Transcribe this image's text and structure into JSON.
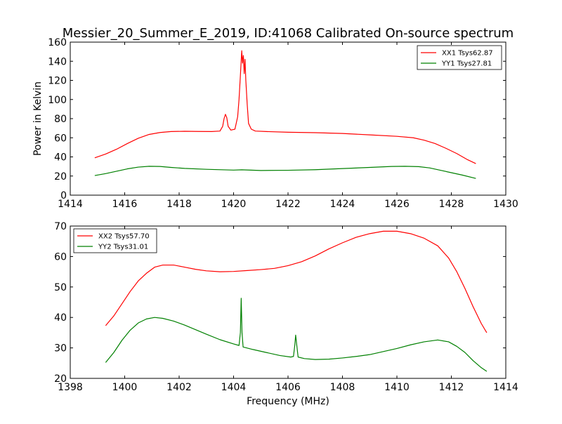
{
  "title": "Messier_20_Summer_E_2019, ID:41068 Calibrated On-source spectrum",
  "chart_data": [
    {
      "type": "line",
      "ylabel": "Power in Kelvin",
      "xlabel": "",
      "xlim": [
        1414,
        1430
      ],
      "ylim": [
        0,
        160
      ],
      "xticks": [
        1414,
        1416,
        1418,
        1420,
        1422,
        1424,
        1426,
        1428,
        1430
      ],
      "yticks": [
        0,
        20,
        40,
        60,
        80,
        100,
        120,
        140,
        160
      ],
      "legend_position": "top-right",
      "series": [
        {
          "name": "XX1 Tsys62.87",
          "color": "#ff0000",
          "points": [
            [
              1414.9,
              39
            ],
            [
              1415.3,
              43
            ],
            [
              1415.7,
              48
            ],
            [
              1416.1,
              54
            ],
            [
              1416.5,
              59.5
            ],
            [
              1416.9,
              63.5
            ],
            [
              1417.3,
              65.5
            ],
            [
              1417.7,
              66.5
            ],
            [
              1418.2,
              66.8
            ],
            [
              1418.7,
              66.6
            ],
            [
              1419.2,
              66.5
            ],
            [
              1419.5,
              67
            ],
            [
              1419.6,
              72
            ],
            [
              1419.65,
              80
            ],
            [
              1419.7,
              84.5
            ],
            [
              1419.75,
              81
            ],
            [
              1419.8,
              72
            ],
            [
              1419.9,
              68
            ],
            [
              1420.05,
              69
            ],
            [
              1420.15,
              82
            ],
            [
              1420.2,
              100
            ],
            [
              1420.25,
              125
            ],
            [
              1420.3,
              151
            ],
            [
              1420.33,
              138
            ],
            [
              1420.36,
              146
            ],
            [
              1420.39,
              127
            ],
            [
              1420.42,
              142
            ],
            [
              1420.45,
              120
            ],
            [
              1420.5,
              95
            ],
            [
              1420.55,
              75
            ],
            [
              1420.65,
              69
            ],
            [
              1420.8,
              67
            ],
            [
              1421.2,
              66.5
            ],
            [
              1422,
              65.8
            ],
            [
              1423,
              65.3
            ],
            [
              1424,
              64.5
            ],
            [
              1425,
              63
            ],
            [
              1426,
              61.5
            ],
            [
              1426.6,
              60
            ],
            [
              1427,
              57.5
            ],
            [
              1427.4,
              54
            ],
            [
              1427.8,
              49
            ],
            [
              1428.2,
              43.5
            ],
            [
              1428.6,
              37
            ],
            [
              1428.9,
              33
            ]
          ]
        },
        {
          "name": "YY1 Tsys27.81",
          "color": "#008000",
          "points": [
            [
              1414.9,
              20.5
            ],
            [
              1415.3,
              22.5
            ],
            [
              1415.7,
              25
            ],
            [
              1416.1,
              27.5
            ],
            [
              1416.5,
              29.3
            ],
            [
              1416.9,
              30.2
            ],
            [
              1417.3,
              30
            ],
            [
              1417.7,
              29
            ],
            [
              1418.2,
              28
            ],
            [
              1419,
              27
            ],
            [
              1420,
              26.2
            ],
            [
              1420.3,
              26.5
            ],
            [
              1421,
              25.8
            ],
            [
              1422,
              26
            ],
            [
              1423,
              26.6
            ],
            [
              1424,
              27.8
            ],
            [
              1425,
              29
            ],
            [
              1425.8,
              30
            ],
            [
              1426.3,
              30.2
            ],
            [
              1426.8,
              29.8
            ],
            [
              1427.2,
              28.5
            ],
            [
              1427.6,
              26
            ],
            [
              1428,
              23.5
            ],
            [
              1428.4,
              21
            ],
            [
              1428.9,
              17.5
            ]
          ]
        }
      ]
    },
    {
      "type": "line",
      "ylabel": "",
      "xlabel": "Frequency (MHz)",
      "xlim": [
        1398,
        1414
      ],
      "ylim": [
        20,
        70
      ],
      "xticks": [
        1398,
        1400,
        1402,
        1404,
        1406,
        1408,
        1410,
        1412,
        1414
      ],
      "yticks": [
        20,
        30,
        40,
        50,
        60,
        70
      ],
      "legend_position": "top-left",
      "series": [
        {
          "name": "XX2 Tsys57.70",
          "color": "#ff0000",
          "points": [
            [
              1399.3,
              37.3
            ],
            [
              1399.6,
              40.5
            ],
            [
              1399.9,
              44.5
            ],
            [
              1400.2,
              48.5
            ],
            [
              1400.5,
              52
            ],
            [
              1400.8,
              54.5
            ],
            [
              1401.1,
              56.5
            ],
            [
              1401.4,
              57.2
            ],
            [
              1401.8,
              57.2
            ],
            [
              1402.2,
              56.5
            ],
            [
              1402.6,
              55.8
            ],
            [
              1403,
              55.3
            ],
            [
              1403.5,
              55
            ],
            [
              1404,
              55.1
            ],
            [
              1404.5,
              55.4
            ],
            [
              1405,
              55.7
            ],
            [
              1405.5,
              56.1
            ],
            [
              1406,
              57
            ],
            [
              1406.5,
              58.3
            ],
            [
              1407,
              60.2
            ],
            [
              1407.5,
              62.5
            ],
            [
              1408,
              64.5
            ],
            [
              1408.5,
              66.3
            ],
            [
              1409,
              67.5
            ],
            [
              1409.5,
              68.3
            ],
            [
              1410,
              68.3
            ],
            [
              1410.5,
              67.5
            ],
            [
              1411,
              66
            ],
            [
              1411.5,
              63.5
            ],
            [
              1411.9,
              59.5
            ],
            [
              1412.2,
              55
            ],
            [
              1412.5,
              49.5
            ],
            [
              1412.8,
              43.5
            ],
            [
              1413.1,
              38
            ],
            [
              1413.3,
              35
            ]
          ]
        },
        {
          "name": "YY2 Tsys31.01",
          "color": "#008000",
          "points": [
            [
              1399.3,
              25.2
            ],
            [
              1399.6,
              28.5
            ],
            [
              1399.9,
              32.5
            ],
            [
              1400.2,
              35.8
            ],
            [
              1400.5,
              38.2
            ],
            [
              1400.8,
              39.5
            ],
            [
              1401.1,
              40
            ],
            [
              1401.4,
              39.7
            ],
            [
              1401.8,
              38.8
            ],
            [
              1402.2,
              37.5
            ],
            [
              1402.6,
              36
            ],
            [
              1403,
              34.5
            ],
            [
              1403.5,
              32.7
            ],
            [
              1404,
              31.3
            ],
            [
              1404.2,
              30.8
            ],
            [
              1404.25,
              35
            ],
            [
              1404.28,
              46.3
            ],
            [
              1404.31,
              35
            ],
            [
              1404.35,
              30.3
            ],
            [
              1404.7,
              29.5
            ],
            [
              1405.2,
              28.5
            ],
            [
              1405.7,
              27.5
            ],
            [
              1406.1,
              27
            ],
            [
              1406.2,
              27.2
            ],
            [
              1406.25,
              31
            ],
            [
              1406.28,
              34.2
            ],
            [
              1406.32,
              31
            ],
            [
              1406.37,
              27
            ],
            [
              1406.6,
              26.5
            ],
            [
              1407,
              26.2
            ],
            [
              1407.5,
              26.3
            ],
            [
              1408,
              26.7
            ],
            [
              1408.5,
              27.2
            ],
            [
              1409,
              27.8
            ],
            [
              1409.5,
              28.8
            ],
            [
              1410,
              29.8
            ],
            [
              1410.5,
              31
            ],
            [
              1411,
              32
            ],
            [
              1411.5,
              32.6
            ],
            [
              1411.9,
              32
            ],
            [
              1412.2,
              30.5
            ],
            [
              1412.5,
              28.5
            ],
            [
              1412.8,
              25.8
            ],
            [
              1413.1,
              23.5
            ],
            [
              1413.3,
              22.3
            ]
          ]
        }
      ]
    }
  ]
}
